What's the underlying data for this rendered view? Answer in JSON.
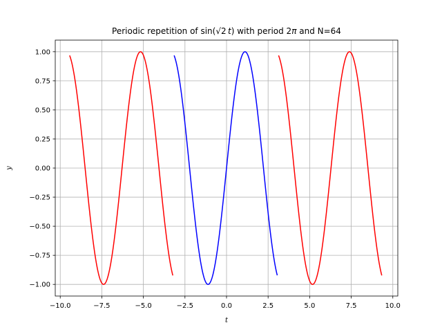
{
  "chart_data": {
    "type": "line",
    "title": "Periodic repetition of sin(√2 t) with period 2π and N=64",
    "xlabel": "t",
    "ylabel": "y",
    "xlim": [
      -10.3,
      10.3
    ],
    "ylim": [
      -1.1,
      1.1
    ],
    "grid": true,
    "x_ticks": [
      -10.0,
      -7.5,
      -5.0,
      -2.5,
      0.0,
      2.5,
      5.0,
      7.5,
      10.0
    ],
    "x_tick_labels": [
      "−10.0",
      "−7.5",
      "−5.0",
      "−2.5",
      "0.0",
      "2.5",
      "5.0",
      "7.5",
      "10.0"
    ],
    "y_ticks": [
      1.0,
      0.75,
      0.5,
      0.25,
      0.0,
      -0.25,
      -0.5,
      -0.75,
      -1.0
    ],
    "y_tick_labels": [
      "1.00",
      "0.75",
      "0.50",
      "0.25",
      "0.00",
      "−0.25",
      "−0.50",
      "−0.75",
      "−1.00"
    ],
    "function": "sin(sqrt(2) t)",
    "period": 6.283185307,
    "n_samples": 64,
    "series": [
      {
        "color": "#ff0000",
        "t_range": [
          -9.42478,
          -3.23795
        ],
        "shift": -6.283185307
      },
      {
        "color": "#0000ff",
        "t_range": [
          -3.14159,
          3.04342
        ],
        "shift": 0
      },
      {
        "color": "#ff0000",
        "t_range": [
          3.14159,
          9.32842
        ],
        "shift": 6.283185307
      }
    ]
  }
}
